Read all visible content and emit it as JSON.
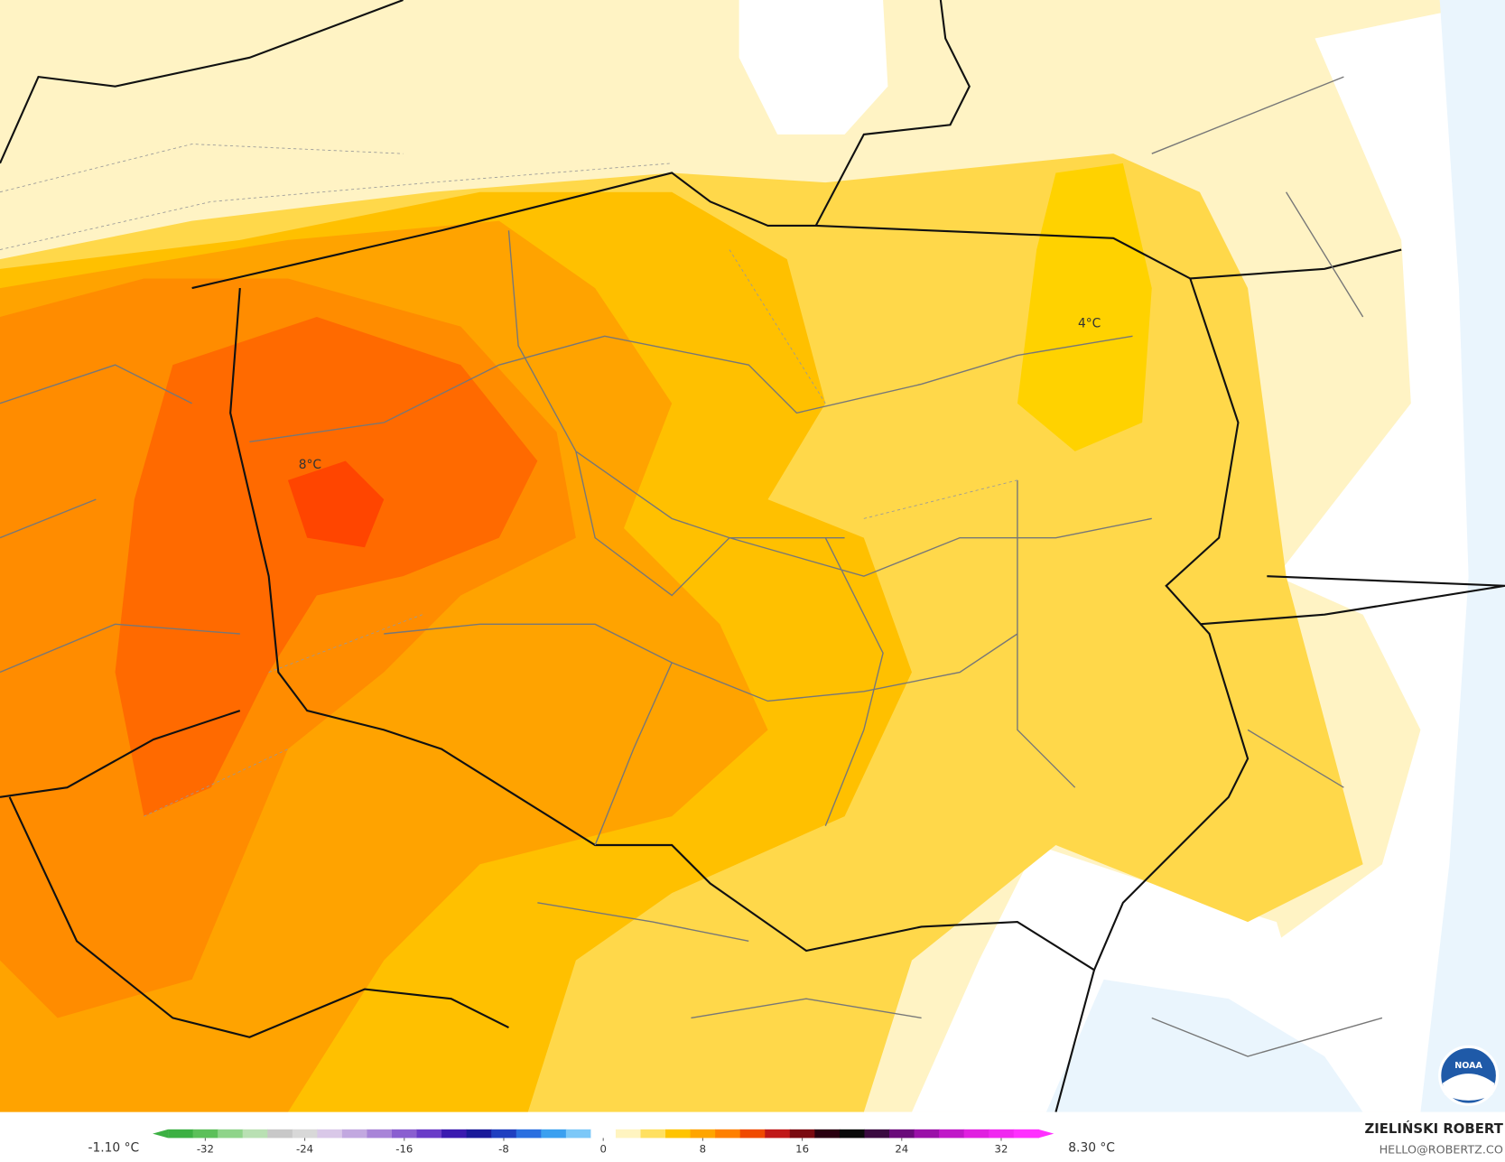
{
  "map": {
    "labels": [
      "8°C",
      "4°C"
    ],
    "logo": "NOAA"
  },
  "legend": {
    "min_label": "-1.10 °C",
    "max_label": "8.30 °C",
    "lim": [
      -35,
      35
    ],
    "ticks": [
      -32,
      -24,
      -16,
      -8,
      0,
      8,
      16,
      24,
      32
    ],
    "colors": [
      "#3cb043",
      "#5cc05a",
      "#8fd48a",
      "#b9e0b3",
      "#c8c8c8",
      "#d8d8d8",
      "#d9c8e8",
      "#c2a8e0",
      "#a884d8",
      "#8a5fd0",
      "#6a3cc8",
      "#3a1ab0",
      "#1a1a9a",
      "#1f3fc0",
      "#2a6fe0",
      "#3ba0f0",
      "#7cc8f8",
      "#ffffff",
      "#fff4c0",
      "#ffe060",
      "#ffc400",
      "#ffa500",
      "#ff8000",
      "#f04a00",
      "#c01818",
      "#7a0a10",
      "#2a0010",
      "#0a0a0a",
      "#3a0a40",
      "#6a0a7a",
      "#9a10a8",
      "#c018c8",
      "#e020e0",
      "#f028f0",
      "#ff30ff"
    ]
  },
  "credit": {
    "author": "ZIELIŃSKI ROBERT",
    "contact": "HELLO@ROBERTZ.CO"
  }
}
